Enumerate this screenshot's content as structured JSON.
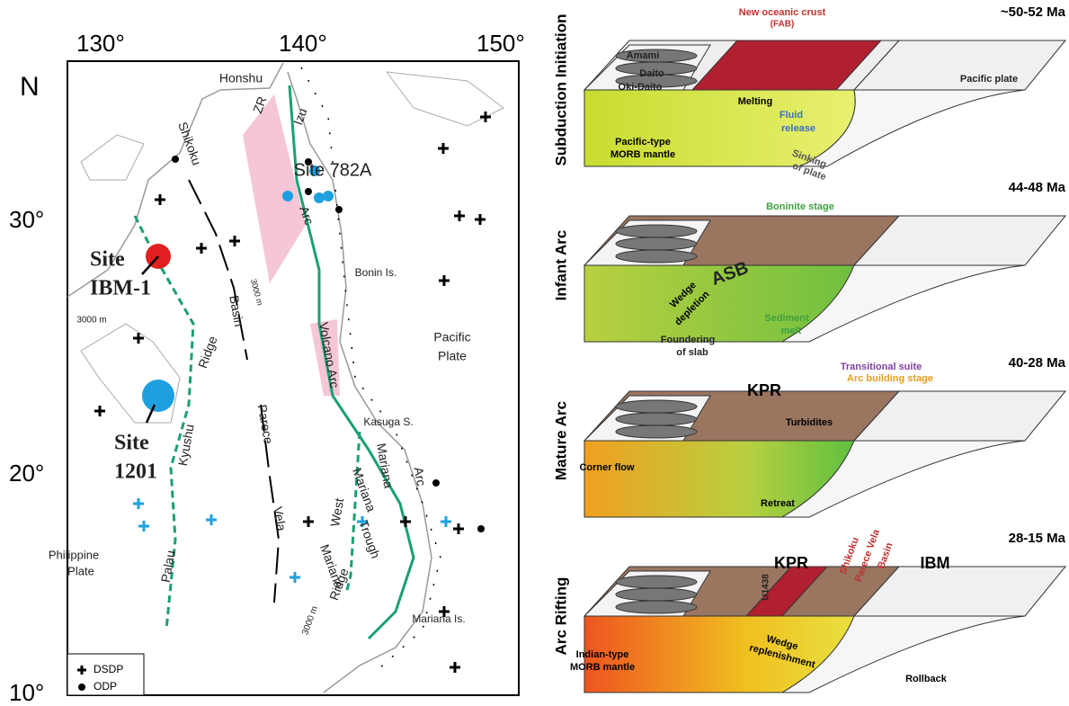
{
  "map": {
    "lon_labels": [
      "130°",
      "140°",
      "150°"
    ],
    "lat_labels": [
      "30°",
      "20°",
      "10°"
    ],
    "north": "N",
    "labels": [
      "Honshu",
      "ZR",
      "Izu",
      "Site 782A",
      "Shikoku",
      "Arc",
      "Site",
      "IBM-1",
      "Bonin Is.",
      "3000 m",
      "3000 m",
      "Basin",
      "Pacific",
      "Plate",
      "Volcano Arc",
      "Ridge",
      "Site",
      "1201",
      "Kyushu",
      "Kasuga S.",
      "Parece",
      "Mariana",
      "Arc",
      "Mariana",
      "Vela",
      "West",
      "Trough",
      "Palau",
      "Mariana",
      "Ridge",
      "Philippine",
      "Plate",
      "Mariana Is.",
      "3000 m"
    ],
    "legend": [
      "DSDP",
      "ODP"
    ]
  },
  "panels": [
    {
      "stage": "Subduction Initiation",
      "age": "~50-52 Ma",
      "labels": [
        "New oceanic crust",
        "(FAB)",
        "Amami",
        "Daito",
        "Oki-Daito",
        "Pacific plate",
        "Melting",
        "Fluid",
        "release",
        "Pacific-type",
        "MORB mantle",
        "Sinking",
        "of plate"
      ]
    },
    {
      "stage": "Infant Arc",
      "age": "44-48 Ma",
      "labels": [
        "Boninite stage",
        "ASB",
        "Wedge",
        "depletion",
        "Sediment",
        "melt",
        "Foundering",
        "of slab"
      ]
    },
    {
      "stage": "Mature Arc",
      "age": "40-28 Ma",
      "labels": [
        "Transitional suite",
        "Arc building stage",
        "KPR",
        "Turbidites",
        "Corner flow",
        "Retreat"
      ]
    },
    {
      "stage": "Arc Rifting",
      "age": "28-15 Ma",
      "labels": [
        "U1438",
        "KPR",
        "Shikoku",
        "Parece Vela",
        "Basin",
        "IBM",
        "Indian-type",
        "MORB mantle",
        "Wedge",
        "replenishment",
        "Rollback"
      ]
    }
  ]
}
